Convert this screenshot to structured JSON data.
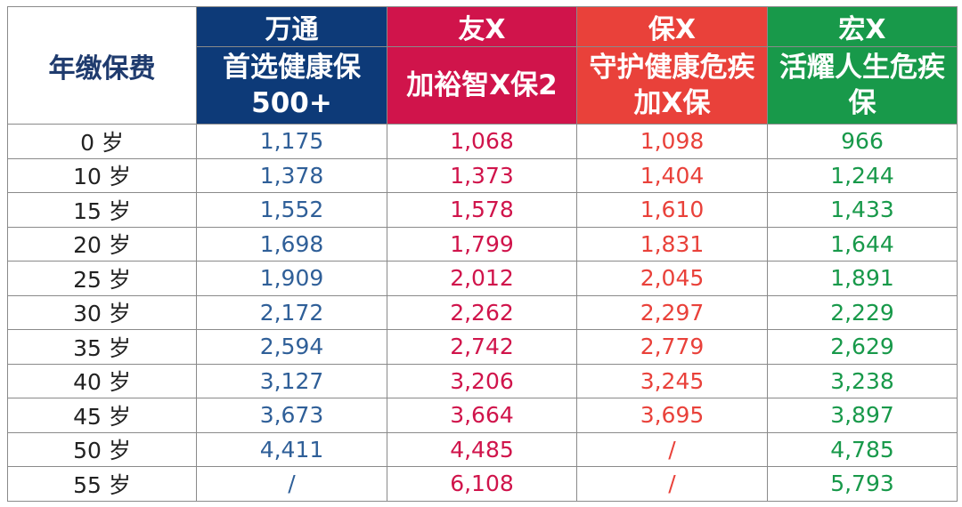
{
  "table": {
    "corner": "年缴保费",
    "columns": [
      {
        "company": "万通",
        "product": "首选健康保500+"
      },
      {
        "company": "友X",
        "product": "加裕智X保2"
      },
      {
        "company": "保X",
        "product": "守护健康危疾加X保"
      },
      {
        "company": "宏X",
        "product": "活耀人生危疾保"
      }
    ],
    "rows": [
      [
        "0 岁",
        "1,175",
        "1,068",
        "1,098",
        "966"
      ],
      [
        "10 岁",
        "1,378",
        "1,373",
        "1,404",
        "1,244"
      ],
      [
        "15 岁",
        "1,552",
        "1,578",
        "1,610",
        "1,433"
      ],
      [
        "20 岁",
        "1,698",
        "1,799",
        "1,831",
        "1,644"
      ],
      [
        "25 岁",
        "1,909",
        "2,012",
        "2,045",
        "1,891"
      ],
      [
        "30 岁",
        "2,172",
        "2,262",
        "2,297",
        "2,229"
      ],
      [
        "35 岁",
        "2,594",
        "2,742",
        "2,779",
        "2,629"
      ],
      [
        "40 岁",
        "3,127",
        "3,206",
        "3,245",
        "3,238"
      ],
      [
        "45 岁",
        "3,673",
        "3,664",
        "3,695",
        "3,897"
      ],
      [
        "50 岁",
        "4,411",
        "4,485",
        "/",
        "4,785"
      ],
      [
        "55 岁",
        "/",
        "6,108",
        "/",
        "5,793"
      ]
    ]
  }
}
